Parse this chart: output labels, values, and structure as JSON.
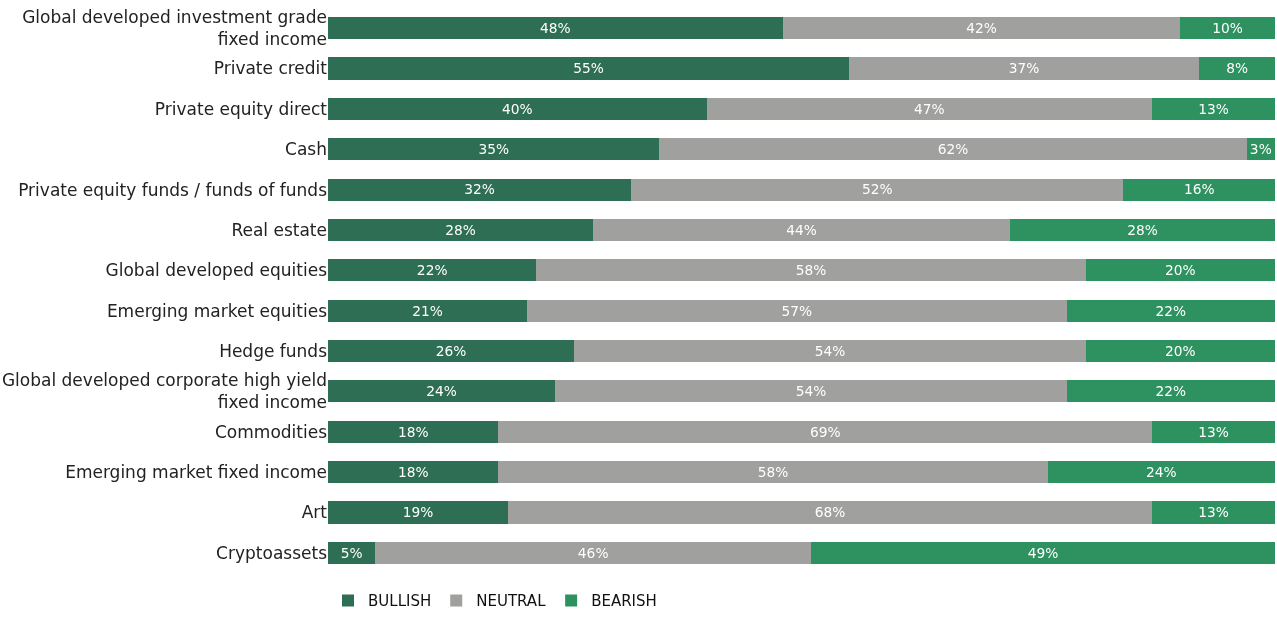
{
  "chart_data": {
    "type": "bar",
    "orientation": "horizontal",
    "stacked": true,
    "legend": "bottom left",
    "tick_labels": "y",
    "categories": [
      "Global developed investment grade fixed income",
      "Private credit",
      "Private equity direct",
      "Cash",
      "Private equity funds / funds of funds",
      "Real estate",
      "Global developed equities",
      "Emerging market equities",
      "Hedge funds",
      "Global developed corporate high yield fixed income",
      "Commodities",
      "Emerging market fixed income",
      "Art",
      "Cryptoassets"
    ],
    "series": [
      {
        "name": "BULLISH",
        "color": "#2e6e55",
        "values": [
          48,
          55,
          40,
          35,
          32,
          28,
          22,
          21,
          26,
          24,
          18,
          18,
          19,
          5
        ],
        "value_labels": [
          "48%",
          "55%",
          "40%",
          "35%",
          "32%",
          "28%",
          "22%",
          "21%",
          "26%",
          "24%",
          "18%",
          "18%",
          "19%",
          "5%"
        ]
      },
      {
        "name": "NEUTRAL",
        "color": "#a0a09e",
        "values": [
          42,
          37,
          47,
          62,
          52,
          44,
          58,
          57,
          54,
          54,
          69,
          58,
          68,
          46
        ],
        "value_labels": [
          "42%",
          "37%",
          "47%",
          "62%",
          "52%",
          "44%",
          "58%",
          "57%",
          "54%",
          "54%",
          "69%",
          "58%",
          "68%",
          "46%"
        ]
      },
      {
        "name": "BEARISH",
        "color": "#2e9160",
        "values": [
          10,
          8,
          13,
          3,
          16,
          28,
          20,
          22,
          20,
          22,
          13,
          24,
          13,
          49
        ],
        "value_labels": [
          "10%",
          "8%",
          "13%",
          "3%",
          "16%",
          "28%",
          "20%",
          "22%",
          "20%",
          "22%",
          "13%",
          "24%",
          "13%",
          "49%"
        ]
      }
    ]
  }
}
